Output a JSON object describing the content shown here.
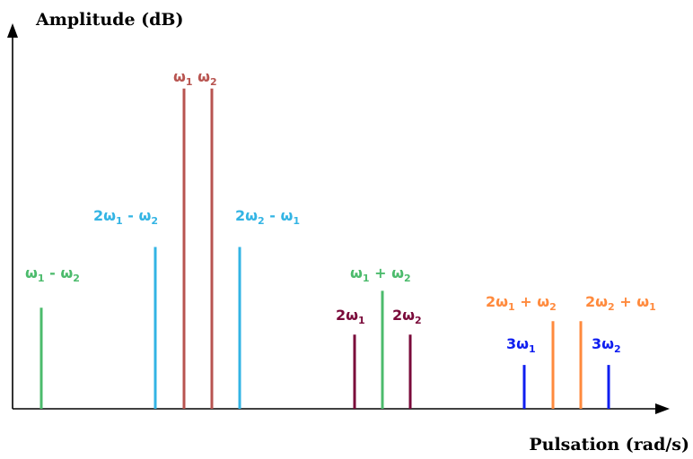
{
  "axes": {
    "y_title": "Amplitude (dB)",
    "x_title": "Pulsation (rad/s)"
  },
  "colors": {
    "fundamental": "#b85450",
    "third_order_intermod": "#33b4e4",
    "second_order_intermod": "#4cbb6c",
    "second_harmonic": "#7a0a3a",
    "third_order_sum": "#ff8a3d",
    "third_harmonic": "#0f1ef0"
  },
  "lines": [
    {
      "id": "w1-minus-w2",
      "color": "#4cbb6c",
      "level": 0.3
    },
    {
      "id": "2w1-minus-w2",
      "color": "#33b4e4",
      "level": 0.48
    },
    {
      "id": "w1",
      "color": "#b85450",
      "level": 0.95
    },
    {
      "id": "w2",
      "color": "#b85450",
      "level": 0.95
    },
    {
      "id": "2w2-minus-w1",
      "color": "#33b4e4",
      "level": 0.48
    },
    {
      "id": "2w1",
      "color": "#7a0a3a",
      "level": 0.22
    },
    {
      "id": "w1-plus-w2",
      "color": "#4cbb6c",
      "level": 0.35
    },
    {
      "id": "2w2",
      "color": "#7a0a3a",
      "level": 0.22
    },
    {
      "id": "3w1",
      "color": "#0f1ef0",
      "level": 0.13
    },
    {
      "id": "2w1-plus-w2",
      "color": "#ff8a3d",
      "level": 0.26
    },
    {
      "id": "2w2-plus-w1",
      "color": "#ff8a3d",
      "level": 0.26
    },
    {
      "id": "3w2",
      "color": "#0f1ef0",
      "level": 0.13
    }
  ],
  "labels": {
    "w1_minus_w2": {
      "a": "ω",
      "a_sub": "1",
      "op": " - ω",
      "b_sub": "2",
      "color": "#4cbb6c"
    },
    "2w1_minus_w2": {
      "a": "2ω",
      "a_sub": "1",
      "op": " - ω",
      "b_sub": "2",
      "color": "#33b4e4"
    },
    "w1_w2": {
      "a": "ω",
      "a_sub": "1",
      "op": " ω",
      "b_sub": "2",
      "color": "#b85450"
    },
    "2w2_minus_w1": {
      "a": "2ω",
      "a_sub": "2",
      "op": " - ω",
      "b_sub": "1",
      "color": "#33b4e4"
    },
    "2w1": {
      "a": "2ω",
      "a_sub": "1",
      "color": "#7a0a3a"
    },
    "w1_plus_w2": {
      "a": "ω",
      "a_sub": "1",
      "op": " + ω",
      "b_sub": "2",
      "color": "#4cbb6c"
    },
    "2w2": {
      "a": "2ω",
      "a_sub": "2",
      "color": "#7a0a3a"
    },
    "3w1": {
      "a": "3ω",
      "a_sub": "1",
      "color": "#0f1ef0"
    },
    "2w1_plus_w2": {
      "a": "2ω",
      "a_sub": "1",
      "op": " + ω",
      "b_sub": "2",
      "color": "#ff8a3d"
    },
    "2w2_plus_w1": {
      "a": "2ω",
      "a_sub": "2",
      "op": " + ω",
      "b_sub": "1",
      "color": "#ff8a3d"
    },
    "3w2": {
      "a": "3ω",
      "a_sub": "2",
      "color": "#0f1ef0"
    }
  }
}
